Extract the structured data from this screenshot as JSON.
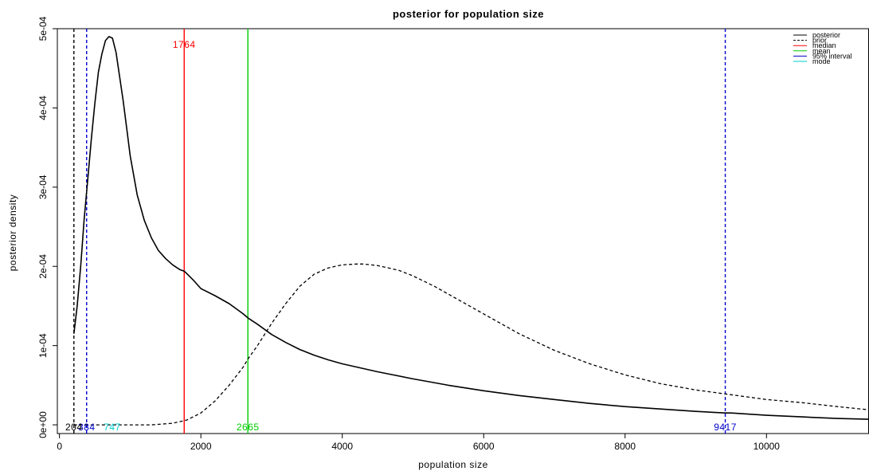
{
  "chart_data": {
    "type": "line",
    "title": "posterior for population size",
    "xlabel": "population size",
    "ylabel": "posterior density",
    "xlim": [
      -30,
      11450
    ],
    "ylim": [
      -1.1e-05,
      0.0005
    ],
    "x_ticks": [
      0,
      2000,
      4000,
      6000,
      8000,
      10000
    ],
    "x_tick_labels": [
      "0",
      "2000",
      "4000",
      "6000",
      "8000",
      "10000"
    ],
    "y_ticks": [
      0,
      0.0001,
      0.0002,
      0.0003,
      0.0004,
      0.0005
    ],
    "y_tick_labels": [
      "0e+00",
      "1e-04",
      "2e-04",
      "3e-04",
      "4e-04",
      "5e-04"
    ],
    "grid": false,
    "legend_position": "top-right",
    "series": [
      {
        "name": "posterior",
        "color": "#000000",
        "dash": "solid",
        "x": [
          204,
          250,
          300,
          350,
          400,
          450,
          500,
          550,
          600,
          650,
          700,
          750,
          800,
          850,
          900,
          950,
          1000,
          1100,
          1200,
          1300,
          1400,
          1500,
          1600,
          1700,
          1764,
          1800,
          1900,
          2000,
          2200,
          2400,
          2600,
          2665,
          2800,
          3000,
          3200,
          3400,
          3600,
          3800,
          4000,
          4500,
          5000,
          5500,
          6000,
          6500,
          7000,
          7500,
          8000,
          8500,
          9000,
          9417,
          9500,
          10000,
          10500,
          11000,
          11450
        ],
        "y": [
          0.000115,
          0.00015,
          0.0002,
          0.00026,
          0.00031,
          0.00036,
          0.000405,
          0.000445,
          0.000468,
          0.000485,
          0.00049,
          0.000488,
          0.00047,
          0.00044,
          0.00041,
          0.000375,
          0.00034,
          0.00029,
          0.000258,
          0.000236,
          0.00022,
          0.00021,
          0.000202,
          0.000196,
          0.000194,
          0.000191,
          0.000182,
          0.000172,
          0.000163,
          0.000153,
          0.00014,
          0.000135,
          0.000127,
          0.000114,
          0.000104,
          9.5e-05,
          8.8e-05,
          8.2e-05,
          7.7e-05,
          6.7e-05,
          5.8e-05,
          5e-05,
          4.3e-05,
          3.7e-05,
          3.2e-05,
          2.7e-05,
          2.3e-05,
          2e-05,
          1.7e-05,
          1.5e-05,
          1.5e-05,
          1.2e-05,
          1e-05,
          8e-06,
          7e-06
        ]
      },
      {
        "name": "prior",
        "color": "#000000",
        "dash": "dashed",
        "x": [
          204,
          800,
          1300,
          1600,
          1800,
          2000,
          2200,
          2400,
          2600,
          2665,
          2800,
          3000,
          3200,
          3400,
          3600,
          3800,
          4000,
          4200,
          4300,
          4500,
          4800,
          5000,
          5300,
          5600,
          6000,
          6500,
          7000,
          7500,
          8000,
          8500,
          9000,
          9417,
          9500,
          10000,
          10500,
          11000,
          11450
        ],
        "y": [
          0,
          0,
          0,
          2e-06,
          6e-06,
          1.5e-05,
          3e-05,
          5e-05,
          7.3e-05,
          8.3e-05,
          0.0001,
          0.000128,
          0.000153,
          0.000175,
          0.00019,
          0.000198,
          0.000202,
          0.000203,
          0.000203,
          0.000201,
          0.000195,
          0.000188,
          0.000175,
          0.00016,
          0.00014,
          0.000115,
          9.4e-05,
          7.7e-05,
          6.3e-05,
          5.2e-05,
          4.4e-05,
          3.9e-05,
          3.8e-05,
          3.2e-05,
          2.8e-05,
          2.3e-05,
          1.9e-05
        ]
      }
    ],
    "vlines": [
      {
        "name": "median",
        "x": 1764,
        "color": "#ff0000",
        "dash": "solid",
        "label": "1764",
        "label_position": "top"
      },
      {
        "name": "mean",
        "x": 2665,
        "color": "#00cc00",
        "dash": "solid",
        "label": "2665",
        "label_position": "bottom"
      },
      {
        "name": "95% interval lower",
        "x": 384,
        "color": "#0000cc",
        "dash": "dashed",
        "label": "384",
        "label_position": "bottom"
      },
      {
        "name": "95% interval upper",
        "x": 9417,
        "color": "#0000cc",
        "dash": "dashed",
        "label": "9417",
        "label_position": "bottom"
      },
      {
        "name": "lower bound",
        "x": 204,
        "color": "#000000",
        "dash": "dashed",
        "label": "204",
        "label_position": "bottom"
      },
      {
        "name": "mode",
        "x": 747,
        "color": "#00cccc",
        "dash": "none",
        "label": "747",
        "label_position": "bottom"
      }
    ],
    "legend": [
      {
        "label": "posterior",
        "color": "#000000",
        "dash": "solid"
      },
      {
        "label": "prior",
        "color": "#000000",
        "dash": "dashed"
      },
      {
        "label": "median",
        "color": "#ff0000",
        "dash": "solid"
      },
      {
        "label": "mean",
        "color": "#00cc00",
        "dash": "solid"
      },
      {
        "label": "95% interval",
        "color": "#0000cc",
        "dash": "solid"
      },
      {
        "label": "mode",
        "color": "#00cccc",
        "dash": "solid"
      }
    ]
  }
}
